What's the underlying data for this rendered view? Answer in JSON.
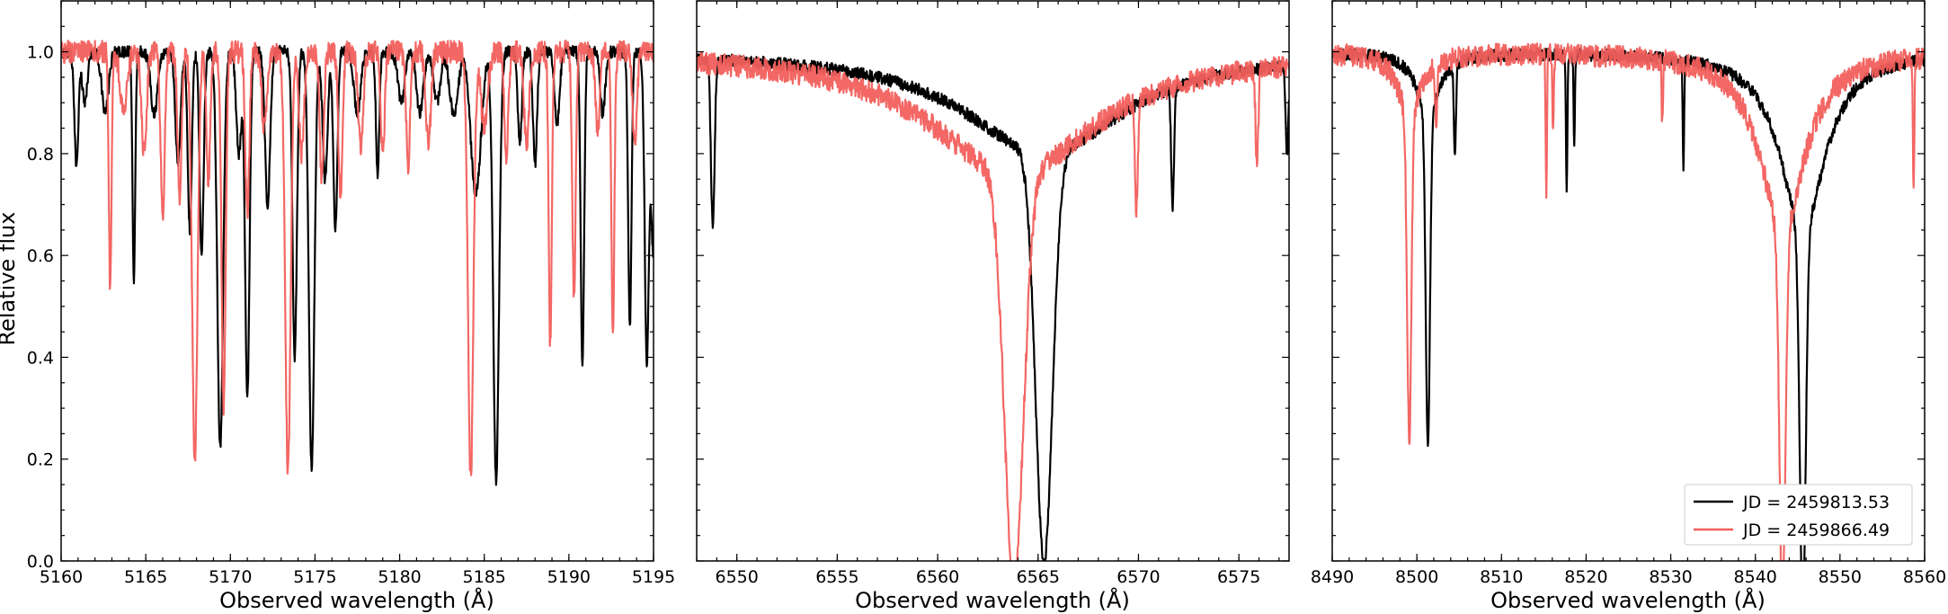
{
  "chart_data": [
    {
      "type": "line",
      "panel": "left",
      "xlabel": "Observed wavelength (Å)",
      "ylabel": "Relative flux",
      "xlim": [
        5160,
        5195
      ],
      "ylim": [
        0.0,
        1.1
      ],
      "xticks": [
        5160,
        5165,
        5170,
        5175,
        5180,
        5185,
        5190,
        5195
      ],
      "xtick_labels": [
        "5160",
        "5165",
        "5170",
        "5175",
        "5180",
        "5185",
        "5190",
        "5195"
      ],
      "yticks": [
        0.0,
        0.2,
        0.4,
        0.6,
        0.8,
        1.0
      ],
      "ytick_labels": [
        "0.0",
        "0.2",
        "0.4",
        "0.6",
        "0.8",
        "1.0"
      ],
      "series": [
        {
          "name": "JD = 2459813.53",
          "color": "#000000",
          "lines": [
            {
              "center": 5160.9,
              "depth": 0.22,
              "width": 0.12
            },
            {
              "center": 5161.4,
              "depth": 0.1,
              "width": 0.15
            },
            {
              "center": 5162.6,
              "depth": 0.12,
              "width": 0.2
            },
            {
              "center": 5164.3,
              "depth": 0.45,
              "width": 0.08
            },
            {
              "center": 5165.5,
              "depth": 0.12,
              "width": 0.2
            },
            {
              "center": 5166.9,
              "depth": 0.22,
              "width": 0.15
            },
            {
              "center": 5167.6,
              "depth": 0.35,
              "width": 0.12
            },
            {
              "center": 5168.3,
              "depth": 0.4,
              "width": 0.12
            },
            {
              "center": 5169.4,
              "depth": 0.78,
              "width": 0.17
            },
            {
              "center": 5170.5,
              "depth": 0.2,
              "width": 0.15
            },
            {
              "center": 5171.0,
              "depth": 0.68,
              "width": 0.13
            },
            {
              "center": 5172.2,
              "depth": 0.3,
              "width": 0.15
            },
            {
              "center": 5173.8,
              "depth": 0.6,
              "width": 0.13
            },
            {
              "center": 5174.8,
              "depth": 0.82,
              "width": 0.16
            },
            {
              "center": 5175.6,
              "depth": 0.25,
              "width": 0.15
            },
            {
              "center": 5176.2,
              "depth": 0.35,
              "width": 0.12
            },
            {
              "center": 5177.5,
              "depth": 0.12,
              "width": 0.2
            },
            {
              "center": 5178.7,
              "depth": 0.24,
              "width": 0.1
            },
            {
              "center": 5180.1,
              "depth": 0.1,
              "width": 0.2
            },
            {
              "center": 5181.2,
              "depth": 0.12,
              "width": 0.2
            },
            {
              "center": 5182.2,
              "depth": 0.1,
              "width": 0.2
            },
            {
              "center": 5183.2,
              "depth": 0.12,
              "width": 0.25
            },
            {
              "center": 5184.5,
              "depth": 0.28,
              "width": 0.3
            },
            {
              "center": 5185.7,
              "depth": 0.84,
              "width": 0.17
            },
            {
              "center": 5187.1,
              "depth": 0.18,
              "width": 0.12
            },
            {
              "center": 5188.0,
              "depth": 0.22,
              "width": 0.12
            },
            {
              "center": 5189.3,
              "depth": 0.14,
              "width": 0.15
            },
            {
              "center": 5190.8,
              "depth": 0.62,
              "width": 0.1
            },
            {
              "center": 5192.0,
              "depth": 0.12,
              "width": 0.15
            },
            {
              "center": 5193.6,
              "depth": 0.54,
              "width": 0.1
            },
            {
              "center": 5194.6,
              "depth": 0.6,
              "width": 0.12
            },
            {
              "center": 5195.0,
              "depth": 0.4,
              "width": 0.15
            }
          ]
        },
        {
          "name": "JD = 2459866.49",
          "color": "#f25f5c",
          "lines": [
            {
              "center": 5162.9,
              "depth": 0.47,
              "width": 0.08
            },
            {
              "center": 5163.7,
              "depth": 0.12,
              "width": 0.2
            },
            {
              "center": 5164.9,
              "depth": 0.2,
              "width": 0.15
            },
            {
              "center": 5166.0,
              "depth": 0.32,
              "width": 0.12
            },
            {
              "center": 5167.0,
              "depth": 0.28,
              "width": 0.12
            },
            {
              "center": 5167.9,
              "depth": 0.8,
              "width": 0.16
            },
            {
              "center": 5168.7,
              "depth": 0.25,
              "width": 0.12
            },
            {
              "center": 5169.6,
              "depth": 0.7,
              "width": 0.12
            },
            {
              "center": 5171.0,
              "depth": 0.32,
              "width": 0.12
            },
            {
              "center": 5172.0,
              "depth": 0.15,
              "width": 0.15
            },
            {
              "center": 5173.4,
              "depth": 0.82,
              "width": 0.16
            },
            {
              "center": 5174.2,
              "depth": 0.2,
              "width": 0.15
            },
            {
              "center": 5175.4,
              "depth": 0.25,
              "width": 0.12
            },
            {
              "center": 5176.5,
              "depth": 0.28,
              "width": 0.12
            },
            {
              "center": 5177.7,
              "depth": 0.18,
              "width": 0.15
            },
            {
              "center": 5179.0,
              "depth": 0.2,
              "width": 0.12
            },
            {
              "center": 5180.5,
              "depth": 0.22,
              "width": 0.12
            },
            {
              "center": 5181.7,
              "depth": 0.18,
              "width": 0.15
            },
            {
              "center": 5184.2,
              "depth": 0.84,
              "width": 0.16
            },
            {
              "center": 5185.0,
              "depth": 0.15,
              "width": 0.2
            },
            {
              "center": 5186.3,
              "depth": 0.2,
              "width": 0.12
            },
            {
              "center": 5187.5,
              "depth": 0.18,
              "width": 0.15
            },
            {
              "center": 5188.9,
              "depth": 0.58,
              "width": 0.09
            },
            {
              "center": 5190.3,
              "depth": 0.48,
              "width": 0.1
            },
            {
              "center": 5191.7,
              "depth": 0.16,
              "width": 0.12
            },
            {
              "center": 5192.6,
              "depth": 0.54,
              "width": 0.09
            },
            {
              "center": 5193.9,
              "depth": 0.2,
              "width": 0.12
            }
          ]
        }
      ]
    },
    {
      "type": "line",
      "panel": "middle",
      "xlabel": "Observed wavelength (Å)",
      "xlim": [
        6548,
        6577.5
      ],
      "ylim": [
        0.0,
        1.1
      ],
      "xticks": [
        6550,
        6555,
        6560,
        6565,
        6570,
        6575
      ],
      "xtick_labels": [
        "6550",
        "6555",
        "6560",
        "6565",
        "6570",
        "6575"
      ],
      "yticks": [
        0.0,
        0.2,
        0.4,
        0.6,
        0.8,
        1.0
      ],
      "series": [
        {
          "name": "JD = 2459813.53",
          "color": "#000000",
          "broad": {
            "center": 6565.3,
            "depth": 0.8,
            "core_width": 0.42,
            "wing_depth": 0.2,
            "wing_width": 4.8
          },
          "lines": [
            {
              "center": 6548.8,
              "depth": 0.33,
              "width": 0.09
            },
            {
              "center": 6571.7,
              "depth": 0.23,
              "width": 0.07
            },
            {
              "center": 6577.4,
              "depth": 0.18,
              "width": 0.07
            }
          ]
        },
        {
          "name": "JD = 2459866.49",
          "color": "#f25f5c",
          "broad": {
            "center": 6563.8,
            "depth": 0.8,
            "core_width": 0.48,
            "wing_depth": 0.24,
            "wing_width": 5.0
          },
          "lines": [
            {
              "center": 6569.9,
              "depth": 0.22,
              "width": 0.07
            },
            {
              "center": 6575.9,
              "depth": 0.18,
              "width": 0.07
            }
          ]
        }
      ]
    },
    {
      "type": "line",
      "panel": "right",
      "xlabel": "Observed wavelength (Å)",
      "xlim": [
        8490,
        8560
      ],
      "ylim": [
        0.0,
        1.1
      ],
      "xticks": [
        8490,
        8500,
        8510,
        8520,
        8530,
        8540,
        8550,
        8560
      ],
      "xtick_labels": [
        "8490",
        "8500",
        "8510",
        "8520",
        "8530",
        "8540",
        "8550",
        "8560"
      ],
      "yticks": [
        0.0,
        0.2,
        0.4,
        0.6,
        0.8,
        1.0
      ],
      "legend": {
        "placement": "lower right"
      },
      "series": [
        {
          "name": "JD = 2459813.53",
          "color": "#000000",
          "broad": [
            {
              "center": 8501.3,
              "depth": 0.65,
              "core_width": 0.25,
              "wing_depth": 0.12,
              "wing_width": 1.6
            },
            {
              "center": 8545.6,
              "depth": 0.75,
              "core_width": 0.35,
              "wing_depth": 0.35,
              "wing_width": 3.2
            }
          ],
          "lines": [
            {
              "center": 8504.5,
              "depth": 0.18,
              "width": 0.12
            },
            {
              "center": 8517.7,
              "depth": 0.28,
              "width": 0.08
            },
            {
              "center": 8518.6,
              "depth": 0.17,
              "width": 0.08
            },
            {
              "center": 8531.5,
              "depth": 0.22,
              "width": 0.08
            }
          ]
        },
        {
          "name": "JD = 2459866.49",
          "color": "#f25f5c",
          "broad": [
            {
              "center": 8499.1,
              "depth": 0.64,
              "core_width": 0.25,
              "wing_depth": 0.12,
              "wing_width": 1.6
            },
            {
              "center": 8543.2,
              "depth": 0.74,
              "core_width": 0.35,
              "wing_depth": 0.35,
              "wing_width": 3.2
            }
          ],
          "lines": [
            {
              "center": 8502.3,
              "depth": 0.12,
              "width": 0.12
            },
            {
              "center": 8515.3,
              "depth": 0.26,
              "width": 0.08
            },
            {
              "center": 8516.1,
              "depth": 0.16,
              "width": 0.08
            },
            {
              "center": 8529.0,
              "depth": 0.13,
              "width": 0.08
            },
            {
              "center": 8558.7,
              "depth": 0.27,
              "width": 0.08
            }
          ]
        }
      ]
    }
  ],
  "legend": {
    "entries": [
      {
        "label": "JD = 2459813.53",
        "color": "#000000"
      },
      {
        "label": "JD = 2459866.49",
        "color": "#f25f5c"
      }
    ]
  }
}
